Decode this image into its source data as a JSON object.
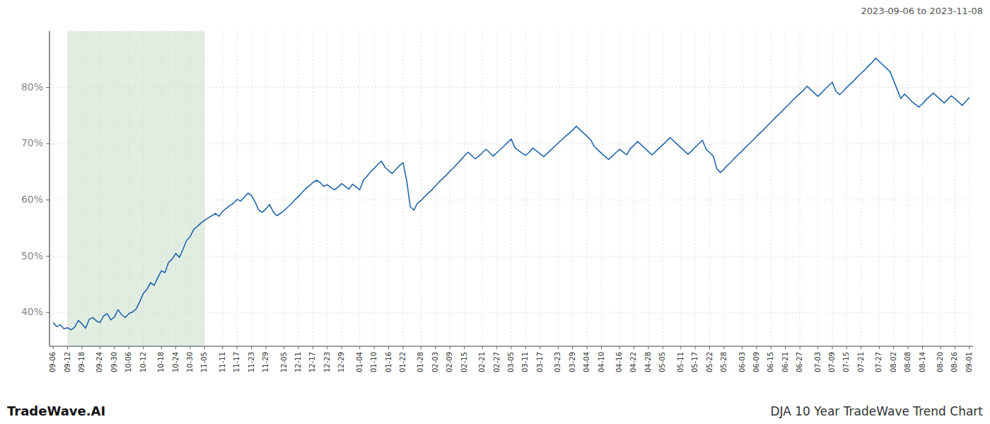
{
  "chart_data": {
    "type": "line",
    "title": "DJA 10 Year TradeWave Trend Chart",
    "subtitle": "2023-09-06 to 2023-11-08",
    "annotations": [
      "TradeWave.AI"
    ],
    "color": "#2166ac",
    "grid": true,
    "ylim": [
      34,
      90
    ],
    "yticks": [
      {
        "value": 40,
        "label": "40%"
      },
      {
        "value": 50,
        "label": "50%"
      },
      {
        "value": 60,
        "label": "60%"
      },
      {
        "value": 70,
        "label": "70%"
      },
      {
        "value": 80,
        "label": "80%"
      }
    ],
    "highlight": {
      "from": "09-12",
      "to": "11-05",
      "color": "#c8dfc8"
    },
    "categories": [
      "09-06",
      null,
      null,
      null,
      "09-12",
      null,
      null,
      null,
      "09-18",
      null,
      null,
      null,
      null,
      "09-24",
      null,
      null,
      null,
      "09-30",
      null,
      null,
      null,
      "10-06",
      null,
      null,
      null,
      "10-12",
      null,
      null,
      null,
      null,
      "10-18",
      null,
      null,
      null,
      "10-24",
      null,
      null,
      null,
      "10-30",
      null,
      null,
      null,
      "11-05",
      null,
      null,
      null,
      null,
      "11-11",
      null,
      null,
      null,
      "11-17",
      null,
      null,
      null,
      "11-23",
      null,
      null,
      null,
      "11-29",
      null,
      null,
      null,
      null,
      "12-05",
      null,
      null,
      null,
      "12-11",
      null,
      null,
      null,
      "12-17",
      null,
      null,
      null,
      "12-23",
      null,
      null,
      null,
      "12-29",
      null,
      null,
      null,
      null,
      "01-04",
      null,
      null,
      null,
      "01-10",
      null,
      null,
      null,
      "01-16",
      null,
      null,
      null,
      "01-22",
      null,
      null,
      null,
      null,
      "01-28",
      null,
      null,
      null,
      "02-03",
      null,
      null,
      null,
      "02-09",
      null,
      null,
      null,
      "02-15",
      null,
      null,
      null,
      null,
      "02-21",
      null,
      null,
      null,
      "02-27",
      null,
      null,
      null,
      "03-05",
      null,
      null,
      null,
      "03-11",
      null,
      null,
      null,
      "03-17",
      null,
      null,
      null,
      null,
      "03-23",
      null,
      null,
      null,
      "03-29",
      null,
      null,
      null,
      "04-04",
      null,
      null,
      null,
      "04-10",
      null,
      null,
      null,
      null,
      "04-16",
      null,
      null,
      null,
      "04-22",
      null,
      null,
      null,
      "04-28",
      null,
      null,
      null,
      "05-05",
      null,
      null,
      null,
      null,
      "05-11",
      null,
      null,
      null,
      "05-17",
      null,
      null,
      null,
      "05-22",
      null,
      null,
      null,
      "05-28",
      null,
      null,
      null,
      null,
      "06-03",
      null,
      null,
      null,
      "06-09",
      null,
      null,
      null,
      "06-15",
      null,
      null,
      null,
      "06-21",
      null,
      null,
      null,
      "06-27",
      null,
      null,
      null,
      null,
      "07-03",
      null,
      null,
      null,
      "07-09",
      null,
      null,
      null,
      "07-15",
      null,
      null,
      null,
      "07-21",
      null,
      null,
      null,
      null,
      "07-27",
      null,
      null,
      null,
      "08-02",
      null,
      null,
      null,
      "08-08",
      null,
      null,
      null,
      "08-14",
      null,
      null,
      null,
      null,
      "08-20",
      null,
      null,
      null,
      "08-26",
      null,
      null,
      null,
      "09-01"
    ],
    "values": [
      38.2,
      37.5,
      37.8,
      37.1,
      37.3,
      36.9,
      37.4,
      38.6,
      38.0,
      37.2,
      38.8,
      39.1,
      38.5,
      38.2,
      39.4,
      39.8,
      38.7,
      39.2,
      40.5,
      39.6,
      39.1,
      39.8,
      40.1,
      40.6,
      41.9,
      43.4,
      44.1,
      45.3,
      44.8,
      46.2,
      47.4,
      47.1,
      48.9,
      49.5,
      50.5,
      49.8,
      51.2,
      52.8,
      53.5,
      54.8,
      55.3,
      55.9,
      56.4,
      56.8,
      57.2,
      57.6,
      57.1,
      58.0,
      58.5,
      59.0,
      59.4,
      60.1,
      59.8,
      60.5,
      61.2,
      60.8,
      59.6,
      58.2,
      57.8,
      58.4,
      59.2,
      57.9,
      57.2,
      57.6,
      58.1,
      58.7,
      59.3,
      60.0,
      60.6,
      61.3,
      62.0,
      62.5,
      63.1,
      63.5,
      63.1,
      62.4,
      62.7,
      62.2,
      61.8,
      62.3,
      62.9,
      62.4,
      61.9,
      62.8,
      62.3,
      61.8,
      63.5,
      64.2,
      65.0,
      65.6,
      66.3,
      66.9,
      65.8,
      65.2,
      64.7,
      65.4,
      66.1,
      66.6,
      63.5,
      58.8,
      58.2,
      59.4,
      59.9,
      60.6,
      61.2,
      61.8,
      62.5,
      63.2,
      63.8,
      64.4,
      65.1,
      65.7,
      66.4,
      67.1,
      67.8,
      68.5,
      67.9,
      67.3,
      67.8,
      68.4,
      69.0,
      68.4,
      67.8,
      68.4,
      69.0,
      69.6,
      70.2,
      70.8,
      69.3,
      68.8,
      68.3,
      67.9,
      68.5,
      69.2,
      68.7,
      68.2,
      67.7,
      68.3,
      68.9,
      69.5,
      70.1,
      70.7,
      71.3,
      71.8,
      72.4,
      73.1,
      72.5,
      71.9,
      71.3,
      70.7,
      69.5,
      68.9,
      68.3,
      67.7,
      67.2,
      67.8,
      68.4,
      69.0,
      68.5,
      68.0,
      69.1,
      69.7,
      70.4,
      69.8,
      69.2,
      68.6,
      68.0,
      68.6,
      69.2,
      69.8,
      70.4,
      71.1,
      70.5,
      69.9,
      69.3,
      68.7,
      68.1,
      68.7,
      69.4,
      70.0,
      70.6,
      69.0,
      68.4,
      67.8,
      65.5,
      64.9,
      65.5,
      66.2,
      66.8,
      67.5,
      68.1,
      68.7,
      69.4,
      70.0,
      70.6,
      71.3,
      71.9,
      72.5,
      73.2,
      73.8,
      74.5,
      75.1,
      75.7,
      76.4,
      77.0,
      77.7,
      78.3,
      78.9,
      79.5,
      80.2,
      79.6,
      79.0,
      78.4,
      79.0,
      79.7,
      80.3,
      80.9,
      79.3,
      78.7,
      79.3,
      80.0,
      80.6,
      81.2,
      81.9,
      82.5,
      83.1,
      83.8,
      84.4,
      85.2,
      84.6,
      84.0,
      83.4,
      82.8,
      81.2,
      79.6,
      78.0,
      78.8,
      78.2,
      77.5,
      77.0,
      76.5,
      77.1,
      77.8,
      78.4,
      79.0,
      78.4,
      77.8,
      77.2,
      77.9,
      78.5,
      78.0,
      77.4,
      76.8,
      77.5,
      78.2
    ]
  }
}
